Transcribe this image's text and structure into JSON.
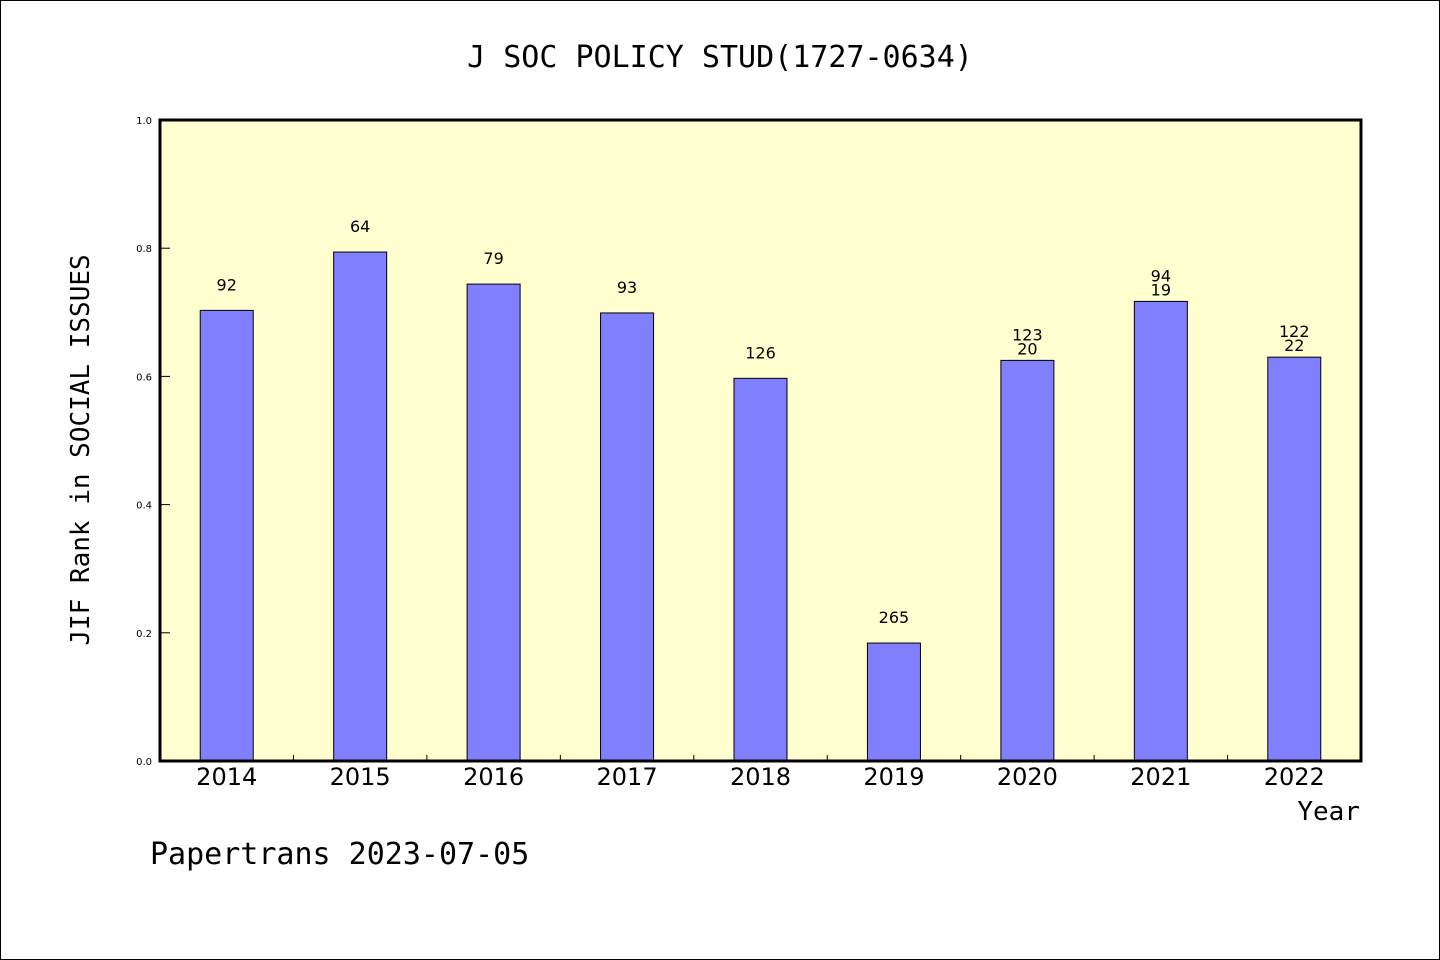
{
  "chart_data": {
    "type": "bar",
    "title": "J SOC POLICY STUD(1727-0634)",
    "xlabel": "Year",
    "ylabel": "JIF Rank in SOCIAL ISSUES",
    "ylim": [
      0,
      1.0
    ],
    "yticks": [
      "0.0",
      "0.2",
      "0.4",
      "0.6",
      "0.8",
      "1.0"
    ],
    "ytick_values": [
      0,
      0.2,
      0.4,
      0.6,
      0.8,
      1.0
    ],
    "categories": [
      "2014",
      "2015",
      "2016",
      "2017",
      "2018",
      "2019",
      "2020",
      "2021",
      "2022"
    ],
    "values": [
      0.703,
      0.794,
      0.744,
      0.699,
      0.597,
      0.184,
      0.625,
      0.717,
      0.63
    ],
    "labels_top": [
      "92",
      "64",
      "79",
      "93",
      "126",
      "265",
      "123",
      "94",
      "122"
    ],
    "labels_bottom": [
      "",
      "",
      "",
      "",
      "",
      "",
      "20",
      "19",
      "22"
    ],
    "grid": false,
    "bar_color": "#8080ff",
    "plot_background": "#ffffd0"
  },
  "footer": "Papertrans 2023-07-05"
}
